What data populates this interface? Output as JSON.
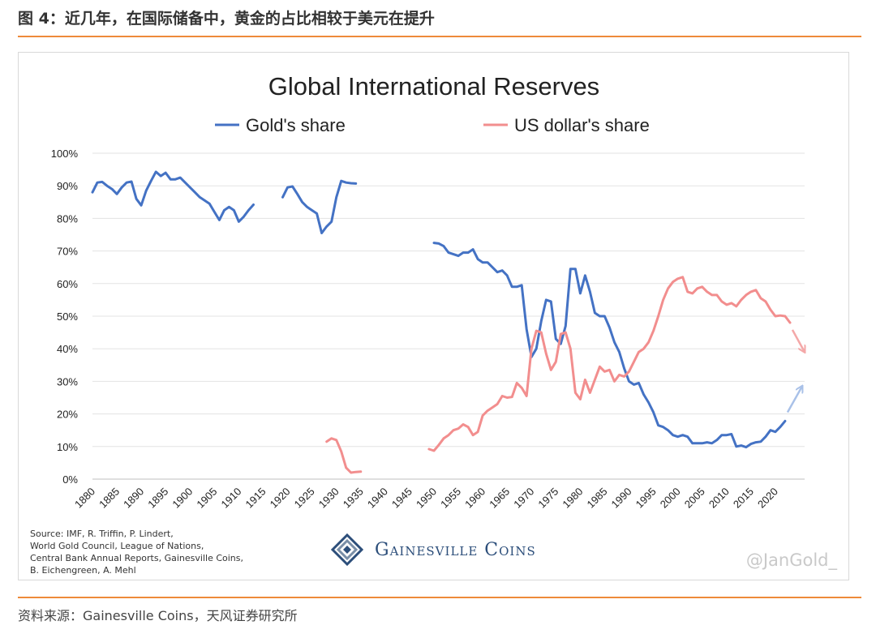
{
  "figure_title": "图 4：近几年，在国际储备中，黄金的占比相较于美元在提升",
  "footer_text": "资料来源：Gainesville  Coins，天风证券研究所",
  "source_note": "Source: IMF, R. Triffin, P. Lindert,\nWorld Gold Council, League of Nations,\nCentral Bank Annual Reports, Gainesville Coins,\nB. Eichengreen, A. Mehl",
  "brand": "Gainesville Coins",
  "watermark": "@JanGold_",
  "colors": {
    "accent_rule": "#ee8a3a",
    "gold": "#4472c4",
    "usd": "#f28e8e"
  },
  "chart_data": {
    "type": "line",
    "title": "Global International Reserves",
    "xlabel": "",
    "ylabel": "",
    "xlim": [
      1880,
      2026
    ],
    "ylim": [
      0,
      100
    ],
    "yticks": [
      0,
      10,
      20,
      30,
      40,
      50,
      60,
      70,
      80,
      90,
      100
    ],
    "ytick_labels": [
      "0%",
      "10%",
      "20%",
      "30%",
      "40%",
      "50%",
      "60%",
      "70%",
      "80%",
      "90%",
      "100%"
    ],
    "xticks": [
      "1880",
      "1885",
      "1890",
      "1895",
      "1900",
      "1905",
      "1910",
      "1915",
      "1920",
      "1925",
      "1930",
      "1935",
      "1940",
      "1945",
      "1950",
      "1955",
      "1960",
      "1965",
      "1970",
      "1975",
      "1980",
      "1985",
      "1990",
      "1995",
      "2000",
      "2005",
      "2010",
      "2015",
      "2020"
    ],
    "grid": "horizontal",
    "legend_position": "top",
    "series": [
      {
        "name": "Gold's share",
        "color": "#4472c4",
        "segments": [
          [
            [
              1880,
              88
            ],
            [
              1881,
              91
            ],
            [
              1882,
              91.2
            ],
            [
              1883,
              90
            ],
            [
              1884,
              89
            ],
            [
              1885,
              87.5
            ],
            [
              1886,
              89.5
            ],
            [
              1887,
              91
            ],
            [
              1888,
              91.3
            ],
            [
              1889,
              86
            ],
            [
              1890,
              84
            ],
            [
              1891,
              88.5
            ],
            [
              1892,
              91.5
            ],
            [
              1893,
              94.3
            ],
            [
              1894,
              93
            ],
            [
              1895,
              94
            ],
            [
              1896,
              92
            ],
            [
              1897,
              92
            ],
            [
              1898,
              92.5
            ],
            [
              1899,
              91
            ],
            [
              1900,
              89.5
            ],
            [
              1901,
              88
            ],
            [
              1902,
              86.5
            ],
            [
              1903,
              85.5
            ],
            [
              1904,
              84.5
            ],
            [
              1905,
              82
            ],
            [
              1906,
              79.5
            ],
            [
              1907,
              82.5
            ],
            [
              1908,
              83.5
            ],
            [
              1909,
              82.5
            ],
            [
              1910,
              79
            ],
            [
              1911,
              80.5
            ],
            [
              1912,
              82.5
            ],
            [
              1913,
              84.2
            ]
          ],
          [
            [
              1919,
              86.5
            ],
            [
              1920,
              89.5
            ],
            [
              1921,
              89.8
            ],
            [
              1922,
              87.5
            ],
            [
              1923,
              85
            ],
            [
              1924,
              83.5
            ],
            [
              1925,
              82.5
            ],
            [
              1926,
              81.5
            ],
            [
              1927,
              75.5
            ],
            [
              1928,
              77.5
            ],
            [
              1929,
              79
            ],
            [
              1930,
              86.5
            ],
            [
              1931,
              91.5
            ],
            [
              1932,
              91
            ],
            [
              1933,
              90.8
            ],
            [
              1934,
              90.7
            ]
          ],
          [
            [
              1950,
              72.5
            ],
            [
              1951,
              72.3
            ],
            [
              1952,
              71.5
            ],
            [
              1953,
              69.5
            ],
            [
              1954,
              69
            ],
            [
              1955,
              68.5
            ],
            [
              1956,
              69.5
            ],
            [
              1957,
              69.5
            ],
            [
              1958,
              70.5
            ],
            [
              1959,
              67.5
            ],
            [
              1960,
              66.5
            ],
            [
              1961,
              66.5
            ],
            [
              1962,
              65
            ],
            [
              1963,
              63.5
            ],
            [
              1964,
              64
            ],
            [
              1965,
              62.5
            ],
            [
              1966,
              59
            ],
            [
              1967,
              59
            ],
            [
              1968,
              59.5
            ],
            [
              1969,
              46
            ],
            [
              1970,
              37.5
            ],
            [
              1971,
              40
            ],
            [
              1972,
              48.5
            ],
            [
              1973,
              55
            ],
            [
              1974,
              54.5
            ],
            [
              1975,
              43
            ],
            [
              1976,
              41.5
            ],
            [
              1977,
              47
            ],
            [
              1978,
              64.5
            ],
            [
              1979,
              64.5
            ],
            [
              1980,
              57
            ],
            [
              1981,
              62.5
            ],
            [
              1982,
              57.5
            ],
            [
              1983,
              51
            ],
            [
              1984,
              50
            ],
            [
              1985,
              50
            ],
            [
              1986,
              46.5
            ],
            [
              1987,
              42
            ],
            [
              1988,
              39
            ],
            [
              1989,
              34
            ],
            [
              1990,
              30
            ],
            [
              1991,
              29
            ],
            [
              1992,
              29.5
            ],
            [
              1993,
              26
            ],
            [
              1994,
              23.5
            ],
            [
              1995,
              20.5
            ],
            [
              1996,
              16.5
            ],
            [
              1997,
              16
            ],
            [
              1998,
              15
            ],
            [
              1999,
              13.5
            ],
            [
              2000,
              13
            ],
            [
              2001,
              13.5
            ],
            [
              2002,
              13
            ],
            [
              2003,
              11
            ],
            [
              2004,
              11
            ],
            [
              2005,
              11
            ],
            [
              2006,
              11.3
            ],
            [
              2007,
              11
            ],
            [
              2008,
              12
            ],
            [
              2009,
              13.5
            ],
            [
              2010,
              13.5
            ],
            [
              2011,
              13.8
            ],
            [
              2012,
              10
            ],
            [
              2013,
              10.3
            ],
            [
              2014,
              9.8
            ],
            [
              2015,
              10.8
            ],
            [
              2016,
              11.3
            ],
            [
              2017,
              11.5
            ],
            [
              2018,
              13
            ],
            [
              2019,
              15
            ],
            [
              2020,
              14.5
            ],
            [
              2021,
              16
            ],
            [
              2022,
              17.8
            ]
          ]
        ],
        "projection": [
          [
            2022.5,
            20.5
          ],
          [
            2025.5,
            28.5
          ]
        ]
      },
      {
        "name": "US dollar's share",
        "color": "#f28e8e",
        "segments": [
          [
            [
              1928,
              11.5
            ],
            [
              1929,
              12.5
            ],
            [
              1930,
              12
            ],
            [
              1931,
              8.5
            ],
            [
              1932,
              3.5
            ],
            [
              1933,
              2
            ],
            [
              1934,
              2.2
            ],
            [
              1935,
              2.3
            ]
          ],
          [
            [
              1949,
              9.2
            ],
            [
              1950,
              8.7
            ],
            [
              1951,
              10.5
            ],
            [
              1952,
              12.5
            ],
            [
              1953,
              13.5
            ],
            [
              1954,
              15
            ],
            [
              1955,
              15.5
            ],
            [
              1956,
              16.8
            ],
            [
              1957,
              16
            ],
            [
              1958,
              13.5
            ],
            [
              1959,
              14.5
            ],
            [
              1960,
              19.5
            ],
            [
              1961,
              21
            ],
            [
              1962,
              22
            ],
            [
              1963,
              23
            ],
            [
              1964,
              25.5
            ],
            [
              1965,
              25
            ],
            [
              1966,
              25.2
            ],
            [
              1967,
              29.5
            ],
            [
              1968,
              28
            ],
            [
              1969,
              25.5
            ],
            [
              1970,
              40
            ],
            [
              1971,
              45.5
            ],
            [
              1972,
              45
            ],
            [
              1973,
              38.5
            ],
            [
              1974,
              33.5
            ],
            [
              1975,
              36
            ],
            [
              1976,
              44.5
            ],
            [
              1977,
              45
            ],
            [
              1978,
              40
            ],
            [
              1979,
              26.5
            ],
            [
              1980,
              24.5
            ],
            [
              1981,
              30.5
            ],
            [
              1982,
              26.5
            ],
            [
              1983,
              30.5
            ],
            [
              1984,
              34.5
            ],
            [
              1985,
              33
            ],
            [
              1986,
              33.5
            ],
            [
              1987,
              30
            ],
            [
              1988,
              32
            ],
            [
              1989,
              31.5
            ],
            [
              1990,
              33
            ],
            [
              1991,
              36
            ],
            [
              1992,
              39
            ],
            [
              1993,
              40
            ],
            [
              1994,
              42
            ],
            [
              1995,
              45.5
            ],
            [
              1996,
              50
            ],
            [
              1997,
              55
            ],
            [
              1998,
              58.5
            ],
            [
              1999,
              60.5
            ],
            [
              2000,
              61.5
            ],
            [
              2001,
              62
            ],
            [
              2002,
              57.5
            ],
            [
              2003,
              57
            ],
            [
              2004,
              58.5
            ],
            [
              2005,
              59
            ],
            [
              2006,
              57.5
            ],
            [
              2007,
              56.5
            ],
            [
              2008,
              56.5
            ],
            [
              2009,
              54.5
            ],
            [
              2010,
              53.5
            ],
            [
              2011,
              54
            ],
            [
              2012,
              53
            ],
            [
              2013,
              55
            ],
            [
              2014,
              56.5
            ],
            [
              2015,
              57.5
            ],
            [
              2016,
              58
            ],
            [
              2017,
              55.5
            ],
            [
              2018,
              54.5
            ],
            [
              2019,
              52
            ],
            [
              2020,
              50
            ],
            [
              2021,
              50.2
            ],
            [
              2022,
              50
            ],
            [
              2023,
              48
            ]
          ]
        ],
        "projection": [
          [
            2023.5,
            45.8
          ],
          [
            2026,
            39
          ]
        ]
      }
    ]
  }
}
